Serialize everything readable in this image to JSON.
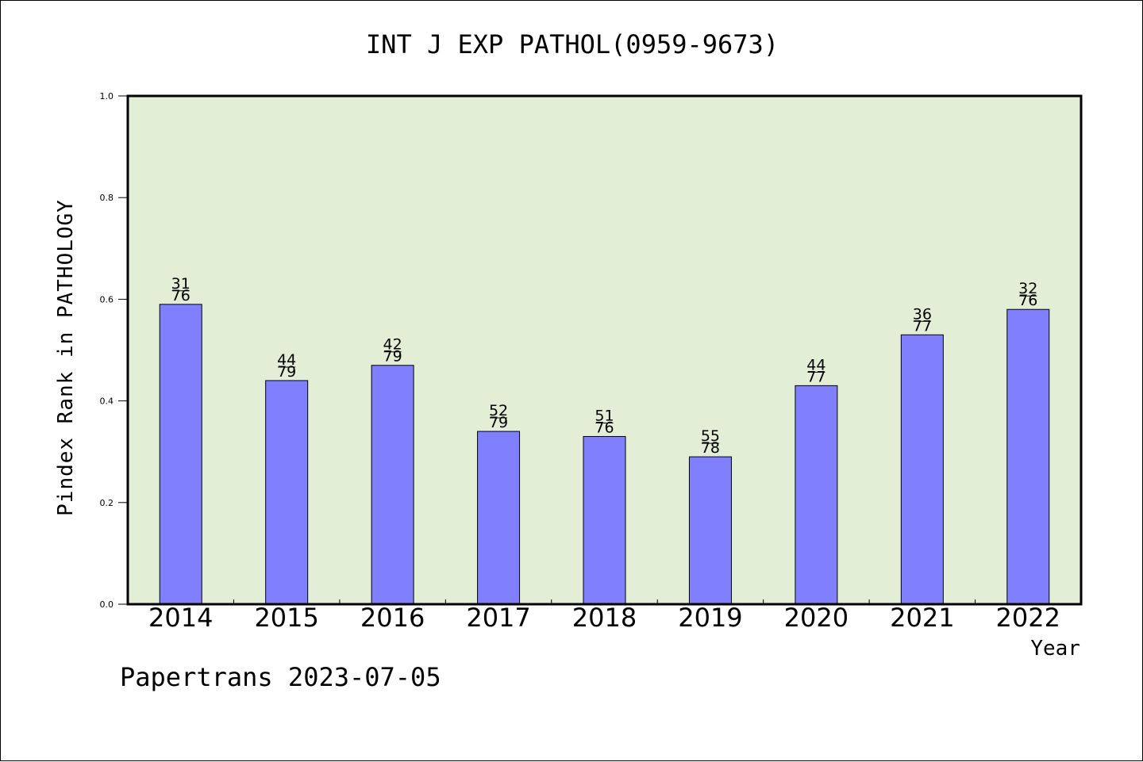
{
  "colors": {
    "plot_background": "#e2efd6",
    "bar_fill": "#8080ff",
    "bar_stroke": "#000000",
    "axis": "#000000"
  },
  "chart_data": {
    "type": "bar",
    "title": "INT J EXP PATHOL(0959-9673)",
    "xlabel": "Year",
    "ylabel": "Pindex Rank in PATHOLOGY",
    "footer": "Papertrans 2023-07-05",
    "categories": [
      "2014",
      "2015",
      "2016",
      "2017",
      "2018",
      "2019",
      "2020",
      "2021",
      "2022"
    ],
    "values": [
      0.59,
      0.44,
      0.47,
      0.34,
      0.33,
      0.29,
      0.43,
      0.53,
      0.58
    ],
    "rank": [
      31,
      44,
      42,
      52,
      51,
      55,
      44,
      36,
      32
    ],
    "total": [
      76,
      79,
      79,
      79,
      76,
      78,
      77,
      77,
      76
    ],
    "ylim": [
      0,
      1.0
    ],
    "yticks": [
      "0.0",
      "0.2",
      "0.4",
      "0.6",
      "0.8",
      "1.0"
    ],
    "grid": false,
    "legend": "none"
  }
}
